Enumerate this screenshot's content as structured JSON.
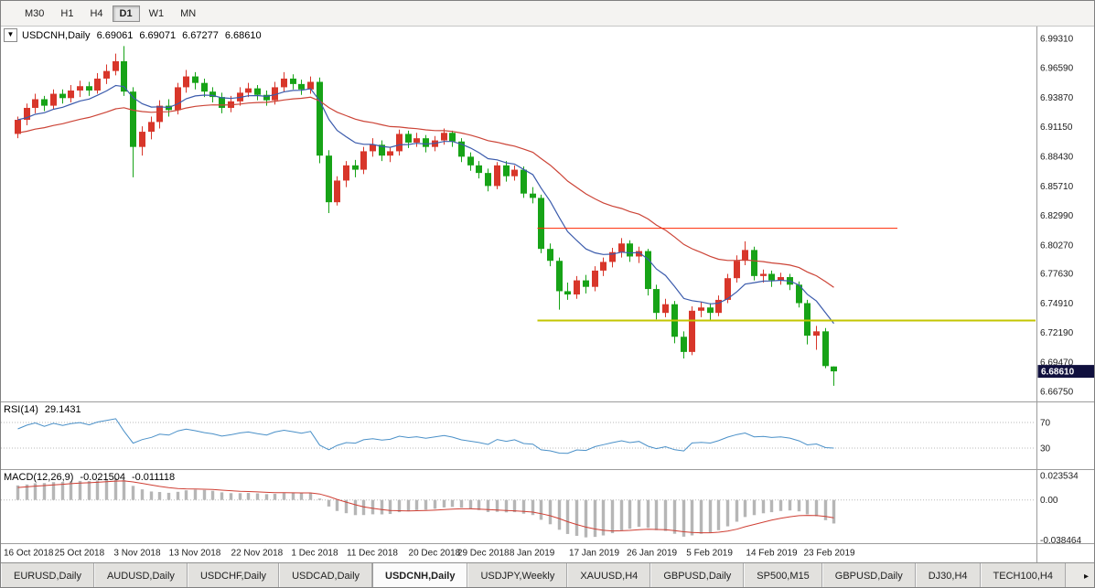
{
  "toolbar": {
    "buttons": [
      "M30",
      "H1",
      "H4",
      "D1",
      "W1",
      "MN"
    ],
    "active_index": 3
  },
  "chart": {
    "collapse_arrow": "▼",
    "symbol_label": "USDCNH,Daily",
    "open": "6.69061",
    "high": "6.69071",
    "low": "6.67277",
    "close": "6.68610",
    "last_price": "6.68610",
    "badge_color": "#10103e",
    "price_scale": [
      "6.99310",
      "6.96590",
      "6.93870",
      "6.91150",
      "6.88430",
      "6.85710",
      "6.82990",
      "6.80270",
      "6.77630",
      "6.74910",
      "6.72190",
      "6.69470",
      "6.66750"
    ],
    "colors": {
      "up": "#d8362a",
      "down": "#17a317",
      "ma_fast": "#3b5bac",
      "ma_slow": "#cc4437"
    },
    "overlay_lines": [
      {
        "name": "resistance-line",
        "price": 6.818,
        "color": "#ff2600",
        "width": 1,
        "start_index": 59,
        "end_x": 980
      },
      {
        "name": "support-line",
        "price": 6.733,
        "color": "#c3c500",
        "width": 2,
        "start_index": 59,
        "end_x": 1131
      }
    ]
  },
  "rsi": {
    "name": "RSI(14)",
    "value": "29.1431",
    "color": "#4a90c8",
    "scale": [
      {
        "text": "70",
        "value": 70
      },
      {
        "text": "30",
        "value": 30
      }
    ]
  },
  "macd": {
    "name": "MACD(12,26,9)",
    "main_value": "-0.021504",
    "signal_value": "-0.011118",
    "histogram_color": "#b6b6b6",
    "signal_color": "#cf3f34",
    "scale": [
      {
        "text": "0.023534",
        "value": 0.023534
      },
      {
        "text": "0.00",
        "value": 0
      },
      {
        "text": "-0.038464",
        "value": -0.038464
      }
    ]
  },
  "x_axis": {
    "labels": [
      {
        "text": "16 Oct 2018",
        "index": 0
      },
      {
        "text": "25 Oct 2018",
        "index": 7
      },
      {
        "text": "3 Nov 2018",
        "index": 13.5
      },
      {
        "text": "13 Nov 2018",
        "index": 20
      },
      {
        "text": "22 Nov 2018",
        "index": 27
      },
      {
        "text": "1 Dec 2018",
        "index": 33.5
      },
      {
        "text": "11 Dec 2018",
        "index": 40
      },
      {
        "text": "20 Dec 2018",
        "index": 47
      },
      {
        "text": "29 Dec 2018",
        "index": 52.5
      },
      {
        "text": "8 Jan 2019",
        "index": 58
      },
      {
        "text": "17 Jan 2019",
        "index": 65
      },
      {
        "text": "26 Jan 2019",
        "index": 71.5
      },
      {
        "text": "5 Feb 2019",
        "index": 78
      },
      {
        "text": "14 Feb 2019",
        "index": 85
      },
      {
        "text": "23 Feb 2019",
        "index": 91.5
      }
    ]
  },
  "tabs": {
    "items": [
      "EURUSD,Daily",
      "AUDUSD,Daily",
      "USDCHF,Daily",
      "USDCAD,Daily",
      "USDCNH,Daily",
      "USDJPY,Weekly",
      "XAUUSD,H4",
      "GBPUSD,Daily",
      "SP500,M15",
      "GBPUSD,Daily",
      "DJ30,H4",
      "TECH100,H4"
    ],
    "active_index": 4,
    "scroll_right_icon": "▸"
  },
  "chart_data": {
    "type": "candlestick",
    "symbol": "USDCNH",
    "timeframe": "Daily",
    "ohlc_last": {
      "open": 6.69061,
      "high": 6.69071,
      "low": 6.67277,
      "close": 6.6861
    },
    "y_range": [
      6.6675,
      6.9931
    ],
    "candles": [
      [
        6.905,
        6.921,
        6.901,
        6.918
      ],
      [
        6.918,
        6.933,
        6.913,
        6.929
      ],
      [
        6.929,
        6.942,
        6.924,
        6.937
      ],
      [
        6.937,
        6.94,
        6.926,
        6.931
      ],
      [
        6.931,
        6.946,
        6.928,
        6.942
      ],
      [
        6.942,
        6.946,
        6.933,
        6.938
      ],
      [
        6.938,
        6.95,
        6.934,
        6.945
      ],
      [
        6.945,
        6.954,
        6.939,
        6.949
      ],
      [
        6.949,
        6.953,
        6.94,
        6.945
      ],
      [
        6.945,
        6.961,
        6.942,
        6.956
      ],
      [
        6.956,
        6.969,
        6.951,
        6.963
      ],
      [
        6.963,
        6.979,
        6.959,
        6.972
      ],
      [
        6.972,
        6.986,
        6.94,
        6.944
      ],
      [
        6.944,
        6.948,
        6.865,
        6.893
      ],
      [
        6.893,
        6.912,
        6.885,
        6.907
      ],
      [
        6.907,
        6.921,
        6.9,
        6.916
      ],
      [
        6.916,
        6.936,
        6.91,
        6.931
      ],
      [
        6.931,
        6.937,
        6.921,
        6.927
      ],
      [
        6.927,
        6.952,
        6.923,
        6.948
      ],
      [
        6.948,
        6.964,
        6.943,
        6.958
      ],
      [
        6.958,
        6.962,
        6.946,
        6.952
      ],
      [
        6.952,
        6.956,
        6.939,
        6.944
      ],
      [
        6.944,
        6.948,
        6.934,
        6.939
      ],
      [
        6.939,
        6.943,
        6.924,
        6.929
      ],
      [
        6.929,
        6.94,
        6.925,
        6.935
      ],
      [
        6.935,
        6.948,
        6.931,
        6.943
      ],
      [
        6.943,
        6.952,
        6.939,
        6.947
      ],
      [
        6.947,
        6.95,
        6.936,
        6.941
      ],
      [
        6.941,
        6.945,
        6.931,
        6.936
      ],
      [
        6.936,
        6.953,
        6.932,
        6.948
      ],
      [
        6.948,
        6.962,
        6.944,
        6.956
      ],
      [
        6.956,
        6.96,
        6.946,
        6.951
      ],
      [
        6.951,
        6.955,
        6.941,
        6.946
      ],
      [
        6.946,
        6.958,
        6.942,
        6.953
      ],
      [
        6.953,
        6.957,
        6.878,
        6.885
      ],
      [
        6.885,
        6.89,
        6.832,
        6.842
      ],
      [
        6.842,
        6.866,
        6.839,
        6.862
      ],
      [
        6.862,
        6.88,
        6.856,
        6.876
      ],
      [
        6.876,
        6.881,
        6.865,
        6.872
      ],
      [
        6.872,
        6.893,
        6.868,
        6.889
      ],
      [
        6.889,
        6.901,
        6.884,
        6.895
      ],
      [
        6.895,
        6.899,
        6.88,
        6.885
      ],
      [
        6.885,
        6.893,
        6.879,
        6.889
      ],
      [
        6.889,
        6.909,
        6.885,
        6.905
      ],
      [
        6.905,
        6.908,
        6.892,
        6.897
      ],
      [
        6.897,
        6.906,
        6.893,
        6.901
      ],
      [
        6.901,
        6.904,
        6.888,
        6.893
      ],
      [
        6.893,
        6.903,
        6.889,
        6.899
      ],
      [
        6.899,
        6.91,
        6.895,
        6.906
      ],
      [
        6.906,
        6.908,
        6.893,
        6.898
      ],
      [
        6.898,
        6.901,
        6.879,
        6.884
      ],
      [
        6.884,
        6.888,
        6.871,
        6.876
      ],
      [
        6.876,
        6.88,
        6.864,
        6.869
      ],
      [
        6.869,
        6.873,
        6.852,
        6.857
      ],
      [
        6.857,
        6.879,
        6.854,
        6.876
      ],
      [
        6.876,
        6.88,
        6.861,
        6.866
      ],
      [
        6.866,
        6.876,
        6.862,
        6.872
      ],
      [
        6.872,
        6.875,
        6.846,
        6.85
      ],
      [
        6.85,
        6.856,
        6.841,
        6.846
      ],
      [
        6.846,
        6.849,
        6.795,
        6.799
      ],
      [
        6.799,
        6.804,
        6.783,
        6.788
      ],
      [
        6.788,
        6.791,
        6.743,
        6.76
      ],
      [
        6.76,
        6.768,
        6.752,
        6.757
      ],
      [
        6.757,
        6.774,
        6.753,
        6.77
      ],
      [
        6.77,
        6.775,
        6.758,
        6.764
      ],
      [
        6.764,
        6.783,
        6.76,
        6.779
      ],
      [
        6.779,
        6.791,
        6.774,
        6.787
      ],
      [
        6.787,
        6.8,
        6.782,
        6.796
      ],
      [
        6.796,
        6.809,
        6.791,
        6.804
      ],
      [
        6.804,
        6.807,
        6.787,
        6.792
      ],
      [
        6.792,
        6.801,
        6.786,
        6.797
      ],
      [
        6.797,
        6.799,
        6.756,
        6.762
      ],
      [
        6.762,
        6.766,
        6.734,
        6.74
      ],
      [
        6.74,
        6.753,
        6.736,
        6.748
      ],
      [
        6.748,
        6.751,
        6.712,
        6.718
      ],
      [
        6.718,
        6.723,
        6.698,
        6.704
      ],
      [
        6.704,
        6.746,
        6.701,
        6.742
      ],
      [
        6.742,
        6.75,
        6.736,
        6.745
      ],
      [
        6.745,
        6.749,
        6.733,
        6.74
      ],
      [
        6.74,
        6.756,
        6.737,
        6.752
      ],
      [
        6.752,
        6.776,
        6.749,
        6.772
      ],
      [
        6.772,
        6.793,
        6.768,
        6.788
      ],
      [
        6.788,
        6.806,
        6.784,
        6.798
      ],
      [
        6.798,
        6.801,
        6.77,
        6.774
      ],
      [
        6.774,
        6.78,
        6.768,
        6.776
      ],
      [
        6.776,
        6.779,
        6.764,
        6.77
      ],
      [
        6.77,
        6.777,
        6.766,
        6.773
      ],
      [
        6.773,
        6.776,
        6.761,
        6.766
      ],
      [
        6.766,
        6.769,
        6.745,
        6.749
      ],
      [
        6.749,
        6.752,
        6.711,
        6.719
      ],
      [
        6.719,
        6.728,
        6.706,
        6.723
      ],
      [
        6.723,
        6.726,
        6.689,
        6.691
      ],
      [
        6.69061,
        6.69071,
        6.67277,
        6.6861
      ]
    ],
    "indicators": {
      "ma_fast_period": 10,
      "ma_slow_period": 30,
      "rsi_period": 14,
      "rsi_last": 29.1431,
      "macd": {
        "fast": 12,
        "slow": 26,
        "signal": 9,
        "main_last": -0.021504,
        "signal_last": -0.011118
      }
    },
    "horizontal_lines": [
      {
        "price": 6.818,
        "color": "red",
        "role": "resistance"
      },
      {
        "price": 6.733,
        "color": "yellow",
        "role": "support"
      }
    ]
  }
}
